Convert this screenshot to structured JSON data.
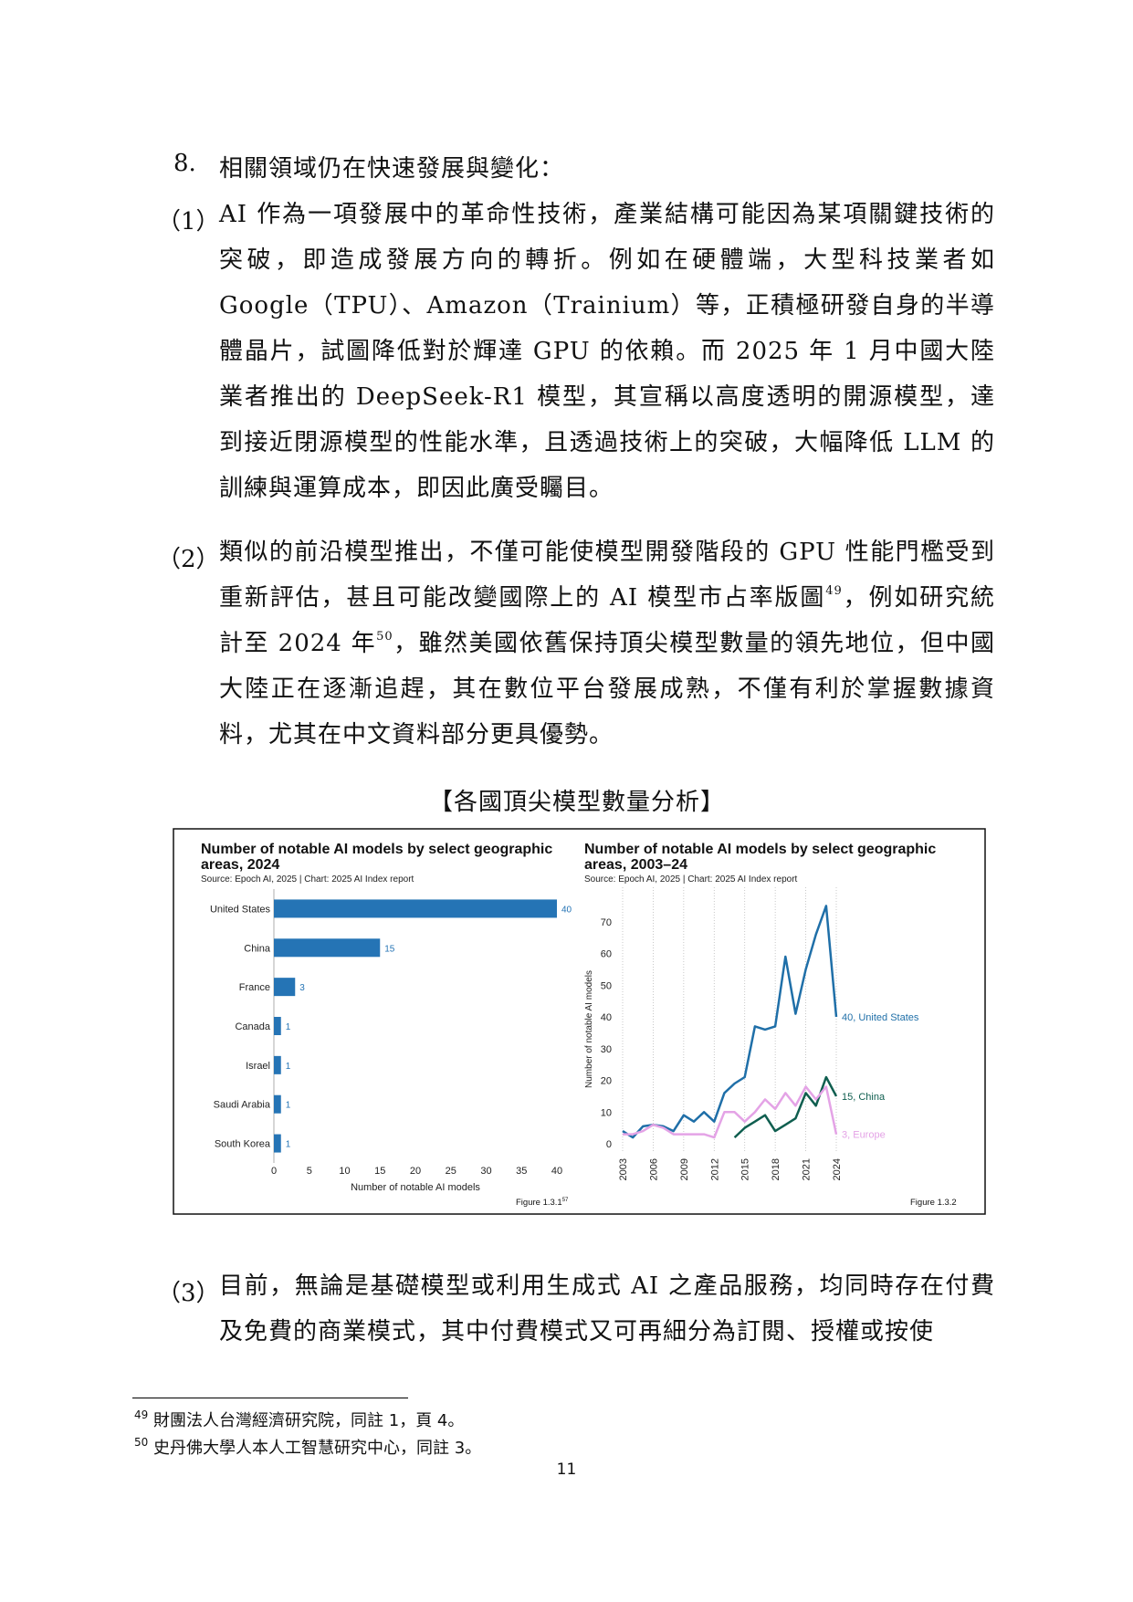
{
  "heading": {
    "number": "8.",
    "text": "相關領域仍在快速發展與變化："
  },
  "paragraphs": [
    {
      "label": "（1）",
      "parts": [
        "AI 作為一項發展中的革命性技術，產業結構可能因為某項關鍵技術的突破，即造成發展方向的轉折。例如在硬體端，大型科技業者如Google（TPU）、Amazon（Trainium）等，正積極研發自身的半導體晶片，試圖降低對於輝達 GPU 的依賴。而 2025 年 1 月中國大陸業者推出的 DeepSeek-R1 模型，其宣稱以高度透明的開源模型，達到接近閉源模型的性能水準，且透過技術上的突破，大幅降低 LLM 的訓練與運算成本，即因此廣受矚目。"
      ]
    },
    {
      "label": "（2）",
      "parts": [
        "類似的前沿模型推出，不僅可能使模型開發階段的 GPU 性能門檻受到重新評估，甚且可能改變國際上的 AI 模型市占率版圖",
        "，例如研究統計至 2024 年",
        "，雖然美國依舊保持頂尖模型數量的領先地位，但中國大陸正在逐漸追趕，其在數位平台發展成熟，不僅有利於掌握數據資料，尤其在中文資料部分更具優勢。"
      ]
    },
    {
      "label": "（3）",
      "parts": [
        "目前，無論是基礎模型或利用生成式 AI 之產品服務，均同時存在付費及免費的商業模式，其中付費模式又可再細分為訂閱、授權或按使"
      ]
    }
  ],
  "caption": "【各國頂尖模型數量分析】",
  "chart_data": [
    {
      "type": "bar",
      "orientation": "horizontal",
      "title": "Number of notable AI models by select geographic areas, 2024",
      "source": "Source: Epoch AI, 2025 | Chart: 2025 AI Index report",
      "figure": "Figure 1.3.1",
      "figure_note": "57",
      "categories": [
        "United States",
        "China",
        "France",
        "Canada",
        "Israel",
        "Saudi Arabia",
        "South Korea"
      ],
      "values": [
        40,
        15,
        3,
        1,
        1,
        1,
        1
      ],
      "color": "#2574b5",
      "xlim": [
        0,
        40
      ],
      "xticks": [
        0,
        5,
        10,
        15,
        20,
        25,
        30,
        35,
        40
      ],
      "xlabel": "Number of notable AI models"
    },
    {
      "type": "line",
      "title": "Number of notable AI models by select geographic areas, 2003–24",
      "source": "Source: Epoch AI, 2025 | Chart: 2025 AI Index report",
      "figure": "Figure 1.3.2",
      "x": [
        2003,
        2004,
        2005,
        2006,
        2007,
        2008,
        2009,
        2010,
        2011,
        2012,
        2013,
        2014,
        2015,
        2016,
        2017,
        2018,
        2019,
        2020,
        2021,
        2022,
        2023,
        2024
      ],
      "xlim": [
        2003,
        2024
      ],
      "xticks": [
        2003,
        2006,
        2009,
        2012,
        2015,
        2018,
        2021,
        2024
      ],
      "ylim": [
        0,
        78
      ],
      "yticks": [
        0,
        10,
        20,
        30,
        40,
        50,
        60,
        70
      ],
      "ylabel": "Number of notable AI models",
      "grid": true,
      "series": [
        {
          "label": "40, United States",
          "color": "#1f6fa8",
          "values": [
            4,
            2,
            5.5,
            6,
            5.5,
            4,
            9,
            7,
            10,
            7,
            16,
            19,
            21,
            37,
            36,
            37,
            59,
            41,
            55,
            66,
            75,
            40
          ]
        },
        {
          "label": "15, China",
          "color": "#0f5e4f",
          "values": [
            null,
            null,
            null,
            null,
            null,
            null,
            null,
            null,
            null,
            null,
            null,
            2,
            5,
            7,
            9,
            4,
            6,
            8,
            16,
            12,
            21,
            15
          ]
        },
        {
          "label": "3, Europe",
          "color": "#e4a3e6",
          "values": [
            3,
            3,
            4,
            6,
            5,
            3,
            3,
            3,
            3,
            2,
            10,
            10,
            7,
            10,
            14,
            11,
            16,
            12,
            18,
            14,
            18,
            3
          ]
        }
      ]
    }
  ],
  "footnotes": [
    {
      "number": "49",
      "text": "財團法人台灣經濟研究院，同註 1，頁 4。"
    },
    {
      "number": "50",
      "text": "史丹佛大學人本人工智慧研究中心，同註 3。"
    }
  ],
  "page_number": "11"
}
